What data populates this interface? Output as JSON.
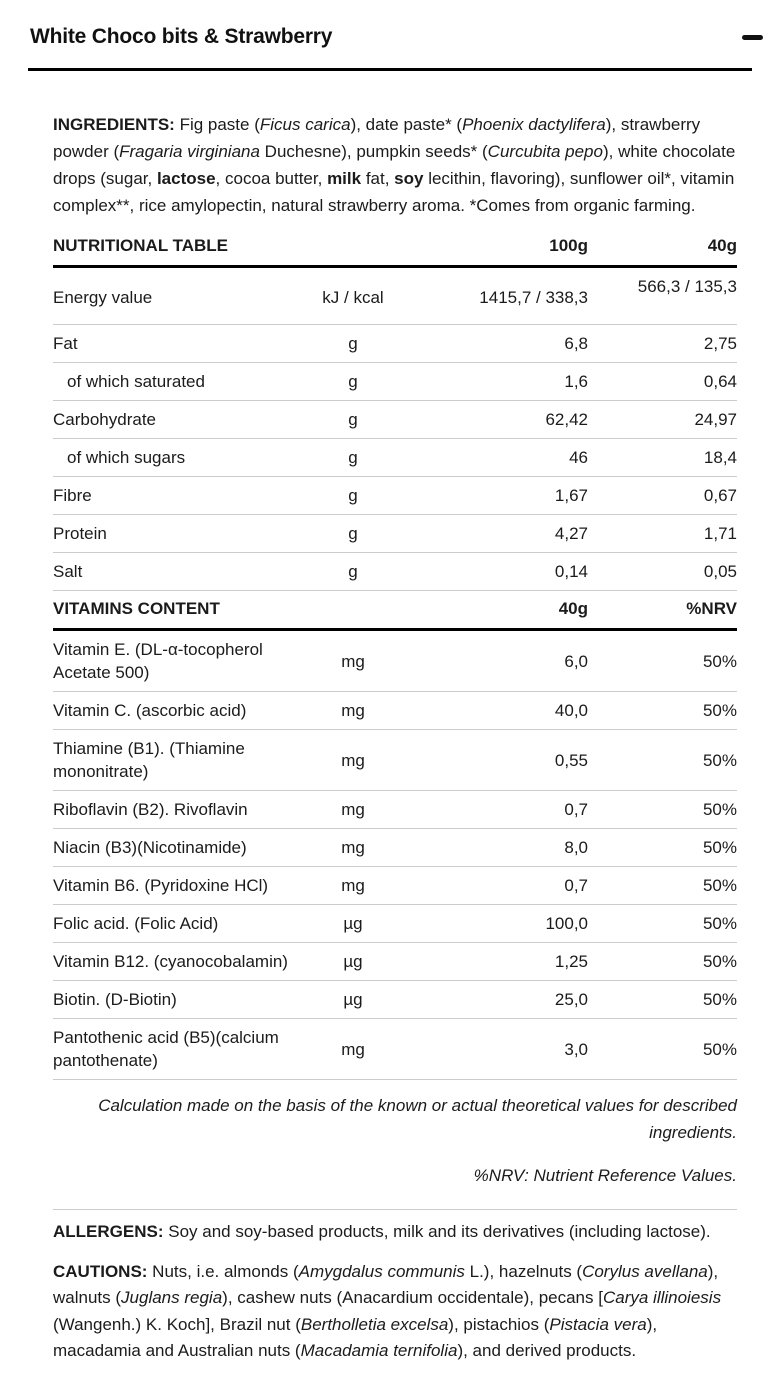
{
  "header": {
    "title": "White Choco bits & Strawberry",
    "collapse_icon": "minus"
  },
  "colors": {
    "text": "#1b1b1b",
    "divider": "#cccccc",
    "rule": "#000000"
  },
  "ingredients": {
    "segments": [
      {
        "t": "INGREDIENTS: ",
        "b": true
      },
      {
        "t": "Fig paste ("
      },
      {
        "t": "Ficus carica",
        "i": true
      },
      {
        "t": "), date paste* ("
      },
      {
        "t": "Phoenix dactylifera",
        "i": true
      },
      {
        "t": "), strawberry powder ("
      },
      {
        "t": "Fragaria virginiana",
        "i": true
      },
      {
        "t": " Duchesne), pumpkin seeds* ("
      },
      {
        "t": "Curcubita pepo",
        "i": true
      },
      {
        "t": "), white chocolate drops (sugar, "
      },
      {
        "t": "lactose",
        "b": true
      },
      {
        "t": ", cocoa butter, "
      },
      {
        "t": "milk",
        "b": true
      },
      {
        "t": " fat, "
      },
      {
        "t": "soy",
        "b": true
      },
      {
        "t": " lecithin, flavoring), sunflower oil*, vitamin complex**, rice amylopectin, natural strawberry aroma. *Comes from organic farming."
      }
    ]
  },
  "nutrition": {
    "title": "NUTRITIONAL TABLE",
    "col_100g": "100g",
    "col_40g": "40g",
    "rows": [
      {
        "label": "Energy value",
        "unit": "kJ / kcal",
        "v1": "1415,7 / 338,3",
        "v2": "566,3 / 135,3",
        "energy": true
      },
      {
        "label": "Fat",
        "unit": "g",
        "v1": "6,8",
        "v2": "2,75"
      },
      {
        "label": "of which saturated",
        "unit": "g",
        "v1": "1,6",
        "v2": "0,64",
        "indent": true
      },
      {
        "label": "Carbohydrate",
        "unit": "g",
        "v1": "62,42",
        "v2": "24,97"
      },
      {
        "label": "of which sugars",
        "unit": "g",
        "v1": "46",
        "v2": "18,4",
        "indent": true
      },
      {
        "label": "Fibre",
        "unit": "g",
        "v1": "1,67",
        "v2": "0,67"
      },
      {
        "label": "Protein",
        "unit": "g",
        "v1": "4,27",
        "v2": "1,71"
      },
      {
        "label": "Salt",
        "unit": "g",
        "v1": "0,14",
        "v2": "0,05"
      }
    ]
  },
  "vitamins": {
    "title": "VITAMINS CONTENT",
    "col_40g": "40g",
    "col_nrv": "%NRV",
    "rows": [
      {
        "label": "Vitamin E. (DL-α-tocopherol Acetate 500)",
        "unit": "mg",
        "v1": "6,0",
        "v2": "50%"
      },
      {
        "label": "Vitamin C. (ascorbic acid)",
        "unit": "mg",
        "v1": "40,0",
        "v2": "50%"
      },
      {
        "label": "Thiamine (B1). (Thiamine mononitrate)",
        "unit": "mg",
        "v1": "0,55",
        "v2": "50%"
      },
      {
        "label": "Riboflavin (B2). Rivoflavin",
        "unit": "mg",
        "v1": "0,7",
        "v2": "50%"
      },
      {
        "label": "Niacin (B3)(Nicotinamide)",
        "unit": "mg",
        "v1": "8,0",
        "v2": "50%"
      },
      {
        "label": "Vitamin B6. (Pyridoxine HCl)",
        "unit": "mg",
        "v1": "0,7",
        "v2": "50%"
      },
      {
        "label": "Folic acid. (Folic Acid)",
        "unit": "µg",
        "v1": "100,0",
        "v2": "50%"
      },
      {
        "label": "Vitamin B12. (cyanocobalamin)",
        "unit": "µg",
        "v1": "1,25",
        "v2": "50%"
      },
      {
        "label": "Biotin. (D-Biotin)",
        "unit": "µg",
        "v1": "25,0",
        "v2": "50%"
      },
      {
        "label": "Pantothenic acid (B5)(calcium pantothenate)",
        "unit": "mg",
        "v1": "3,0",
        "v2": "50%"
      }
    ]
  },
  "notes": {
    "calculation": "Calculation made on the basis of the known or actual theoretical values for described ingredients.",
    "nrv": "%NRV: Nutrient Reference Values."
  },
  "allergens": {
    "segments": [
      {
        "t": "ALLERGENS: ",
        "b": true
      },
      {
        "t": "Soy and soy-based products, milk and its derivatives (including lactose)."
      }
    ]
  },
  "cautions": {
    "segments": [
      {
        "t": "CAUTIONS: ",
        "b": true
      },
      {
        "t": "Nuts, i.e. almonds ("
      },
      {
        "t": "Amygdalus communis",
        "i": true
      },
      {
        "t": " L.), hazelnuts ("
      },
      {
        "t": "Corylus avellana",
        "i": true
      },
      {
        "t": "), walnuts ("
      },
      {
        "t": "Juglans regia",
        "i": true
      },
      {
        "t": "), cashew nuts (Anacardium occidentale), pecans ["
      },
      {
        "t": "Carya illinoiesis",
        "i": true
      },
      {
        "t": " (Wangenh.) K. Koch], Brazil nut ("
      },
      {
        "t": "Bertholletia excelsa",
        "i": true
      },
      {
        "t": "), pistachios ("
      },
      {
        "t": "Pistacia vera",
        "i": true
      },
      {
        "t": "), macadamia and Australian nuts ("
      },
      {
        "t": "Macadamia ternifolia",
        "i": true
      },
      {
        "t": "), and derived products."
      }
    ]
  }
}
